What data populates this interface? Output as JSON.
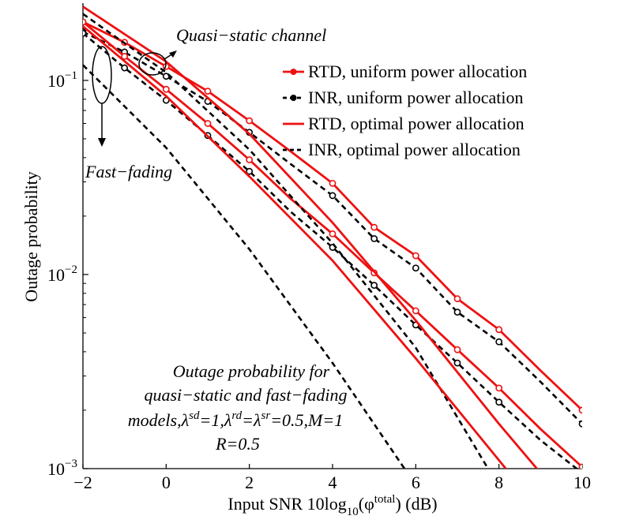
{
  "chart_data": {
    "type": "line",
    "title": "",
    "xlabel": "Input SNR 10log10(φtotal) (dB)",
    "xlabel_parts": {
      "main": "Input SNR 10log",
      "sub": "10",
      "open": "(φ",
      "sup": "total",
      "close": ") (dB)"
    },
    "ylabel": "Outage probability",
    "xscale": "linear",
    "yscale": "log",
    "xlim": [
      -2,
      10
    ],
    "ylim": [
      0.001,
      0.25
    ],
    "x_ticks": [
      -2,
      0,
      2,
      4,
      6,
      8,
      10
    ],
    "x_tick_labels": [
      "−2",
      "0",
      "2",
      "4",
      "6",
      "8",
      "10"
    ],
    "y_ticks": [
      {
        "value": 0.1,
        "base": "10",
        "exp": "−1"
      },
      {
        "value": 0.01,
        "base": "10",
        "exp": "−2"
      },
      {
        "value": 0.001,
        "base": "10",
        "exp": "−3"
      }
    ],
    "grid": false,
    "legend_position": "top-right",
    "legend": [
      {
        "label": "RTD, uniform power allocation",
        "color": "#ee1111",
        "style": "solid",
        "marker": "filled"
      },
      {
        "label": "INR, uniform power allocation",
        "color": "#000000",
        "style": "dashed",
        "marker": "filled"
      },
      {
        "label": "RTD, optimal power allocation",
        "color": "#ee1111",
        "style": "solid",
        "marker": "none"
      },
      {
        "label": "INR, optimal power allocation",
        "color": "#000000",
        "style": "dashed",
        "marker": "none"
      }
    ],
    "series": [
      {
        "name": "RTD uniform, quasi-static",
        "color": "#ee1111",
        "style": "solid",
        "marker": "open",
        "x": [
          -2,
          -1,
          0,
          1,
          2,
          3,
          4,
          5,
          6,
          7,
          8,
          9,
          10
        ],
        "y": [
          0.2,
          0.157,
          0.118,
          0.088,
          0.062,
          0.043,
          0.0295,
          0.0175,
          0.0125,
          0.0075,
          0.0052,
          0.0032,
          0.002
        ]
      },
      {
        "name": "INR uniform, quasi-static",
        "color": "#000000",
        "style": "dashed",
        "marker": "open",
        "x": [
          -2,
          -1,
          0,
          1,
          2,
          3,
          4,
          5,
          6,
          7,
          8,
          9,
          10
        ],
        "y": [
          0.178,
          0.14,
          0.105,
          0.078,
          0.054,
          0.037,
          0.0255,
          0.0153,
          0.0108,
          0.0064,
          0.0045,
          0.0028,
          0.0017
        ]
      },
      {
        "name": "RTD uniform, fast-fading",
        "color": "#ee1111",
        "style": "solid",
        "marker": "open",
        "x": [
          -2,
          -1,
          0,
          1,
          2,
          3,
          4,
          5,
          6,
          7,
          8,
          9,
          10
        ],
        "y": [
          0.2,
          0.133,
          0.09,
          0.06,
          0.039,
          0.0245,
          0.0162,
          0.0102,
          0.0065,
          0.0041,
          0.0026,
          0.0016,
          0.00102
        ]
      },
      {
        "name": "INR uniform, fast-fading",
        "color": "#000000",
        "style": "dashed",
        "marker": "open",
        "x": [
          -2,
          -1,
          0,
          1,
          2,
          3,
          4,
          5,
          6,
          7,
          8,
          9,
          10
        ],
        "y": [
          0.175,
          0.116,
          0.079,
          0.052,
          0.034,
          0.021,
          0.0138,
          0.0088,
          0.0055,
          0.0035,
          0.0022,
          0.0014,
          0.00095
        ]
      },
      {
        "name": "RTD optimal, quasi-static",
        "color": "#ee1111",
        "style": "solid",
        "marker": "none",
        "x": [
          -2,
          0,
          2,
          4,
          6,
          8,
          9
        ],
        "y": [
          0.24,
          0.125,
          0.053,
          0.0185,
          0.0058,
          0.0017,
          0.00095
        ]
      },
      {
        "name": "INR optimal, quasi-static",
        "color": "#000000",
        "style": "dashed",
        "marker": "none",
        "x": [
          -2,
          0,
          2,
          4,
          6,
          7.8
        ],
        "y": [
          0.22,
          0.11,
          0.044,
          0.0145,
          0.0042,
          0.00095
        ]
      },
      {
        "name": "RTD optimal, fast-fading",
        "color": "#ee1111",
        "style": "solid",
        "marker": "none",
        "x": [
          -2,
          0,
          2,
          4,
          6,
          8.25
        ],
        "y": [
          0.19,
          0.083,
          0.032,
          0.0118,
          0.0037,
          0.00095
        ]
      },
      {
        "name": "INR optimal, fast-fading",
        "color": "#000000",
        "style": "dashed",
        "marker": "none",
        "x": [
          -2,
          0,
          2,
          4,
          5.8
        ],
        "y": [
          0.12,
          0.045,
          0.0135,
          0.0035,
          0.00095
        ]
      }
    ],
    "annotations": {
      "quasi_static": "Quasi−static channel",
      "fast_fading": "Fast−fading",
      "caption": {
        "line1": "Outage probability for",
        "line2": "quasi−static and fast−fading",
        "line3_prefix": "models,λ",
        "sd": "sd",
        "eq1": "=1,λ",
        "rd": "rd",
        "eq2": "=λ",
        "sr": "sr",
        "line3_suffix": "=0.5,M=1",
        "line4": "R=0.5"
      }
    }
  }
}
